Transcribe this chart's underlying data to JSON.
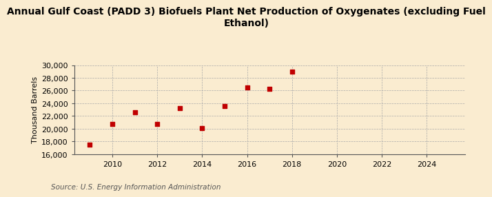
{
  "title": "Annual Gulf Coast (PADD 3) Biofuels Plant Net Production of Oxygenates (excluding Fuel\nEthanol)",
  "ylabel": "Thousand Barrels",
  "source": "Source: U.S. Energy Information Administration",
  "background_color": "#faecd0",
  "plot_bg_color": "#faecd0",
  "scatter_color": "#c00000",
  "x_data": [
    2009,
    2010,
    2011,
    2012,
    2013,
    2014,
    2015,
    2016,
    2017,
    2018
  ],
  "y_data": [
    17500,
    20700,
    22600,
    20700,
    23200,
    20100,
    23600,
    26500,
    26300,
    29000
  ],
  "xlim": [
    2008.3,
    2025.7
  ],
  "ylim": [
    16000,
    30000
  ],
  "yticks": [
    16000,
    18000,
    20000,
    22000,
    24000,
    26000,
    28000,
    30000
  ],
  "xticks": [
    2010,
    2012,
    2014,
    2016,
    2018,
    2020,
    2022,
    2024
  ],
  "title_fontsize": 10,
  "label_fontsize": 8,
  "tick_fontsize": 8,
  "source_fontsize": 7.5,
  "marker_size": 4,
  "grid_color": "#aaaaaa",
  "source_color": "#555555",
  "spine_color": "#555555"
}
